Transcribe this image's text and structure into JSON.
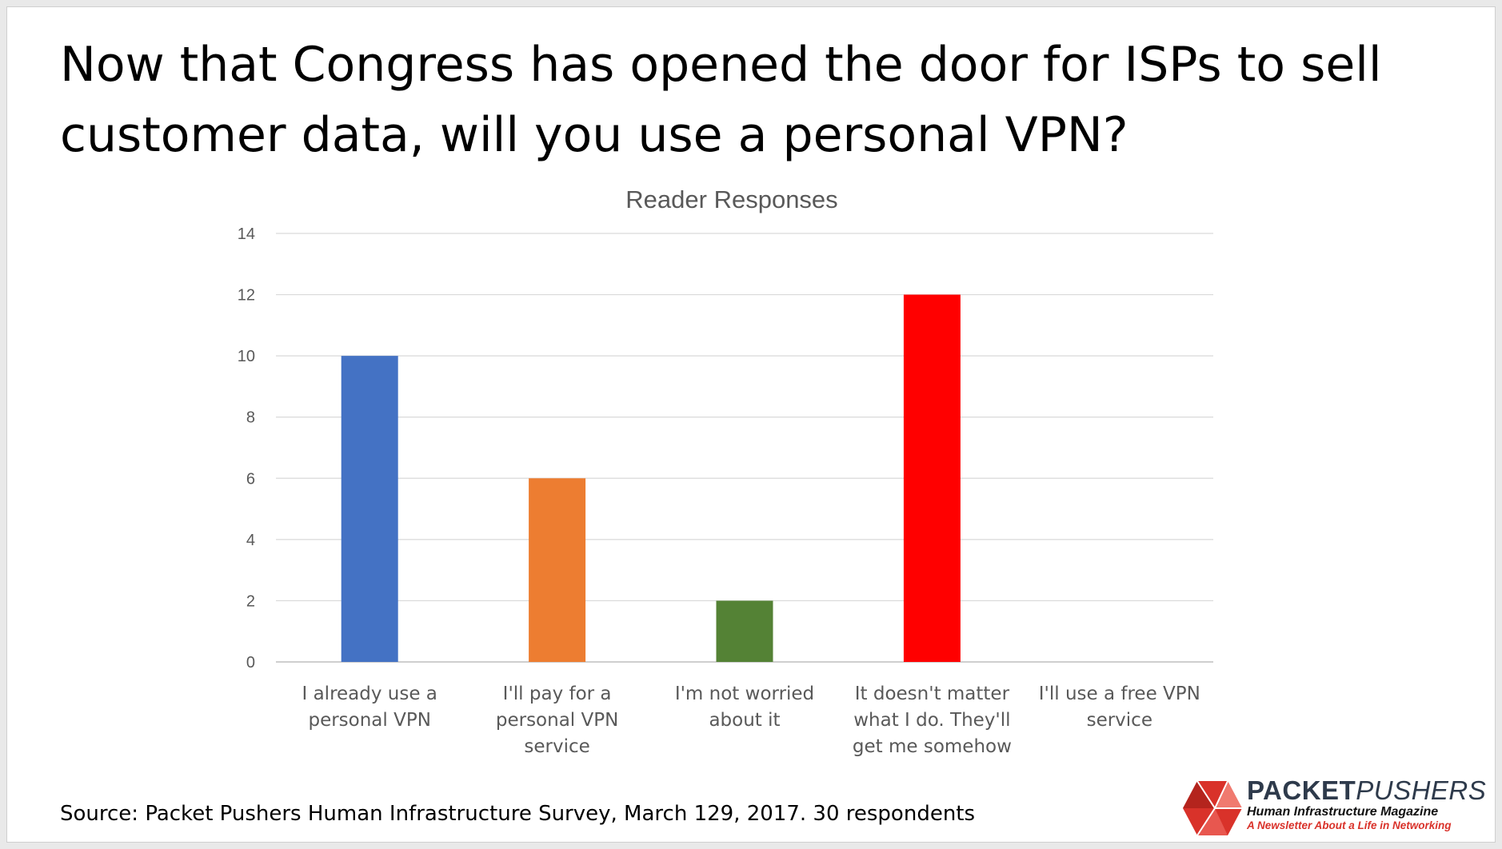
{
  "slide": {
    "title": "Now that Congress has opened the door for ISPs to sell customer data, will you use a personal VPN?",
    "source": "Source: Packet Pushers Human Infrastructure Survey, March 129, 2017. 30 respondents"
  },
  "logo": {
    "brand_part1": "PACKET",
    "brand_part2": "PUSHERS",
    "subtitle": "Human Infrastructure Magazine",
    "tagline": "A Newsletter About a Life in Networking",
    "colors": {
      "brand": "#2e3a4b",
      "accent": "#d9322a"
    }
  },
  "chart_data": {
    "type": "bar",
    "title": "Reader Responses",
    "categories": [
      [
        "I already use a",
        "personal VPN"
      ],
      [
        "I'll pay for a",
        "personal VPN",
        "service"
      ],
      [
        "I'm not worried",
        "about it"
      ],
      [
        "It doesn't matter",
        "what I do. They'll",
        "get me somehow"
      ],
      [
        "I'll use a free VPN",
        "service"
      ]
    ],
    "values": [
      10,
      6,
      2,
      12,
      0
    ],
    "colors": [
      "#4472c4",
      "#ed7d31",
      "#548235",
      "#ff0000",
      "#a5a5a5"
    ],
    "ylim": [
      0,
      14
    ],
    "yticks": [
      0,
      2,
      4,
      6,
      8,
      10,
      12,
      14
    ],
    "grid": true,
    "legend": "none"
  }
}
